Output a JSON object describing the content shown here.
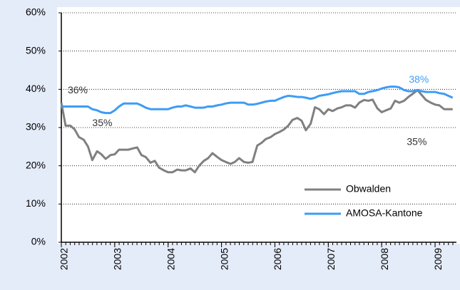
{
  "chart_data": {
    "type": "line",
    "x": [
      2002,
      2002.08,
      2002.17,
      2002.25,
      2002.33,
      2002.42,
      2002.5,
      2002.58,
      2002.67,
      2002.75,
      2002.83,
      2002.92,
      2003,
      2003.08,
      2003.17,
      2003.25,
      2003.33,
      2003.42,
      2003.5,
      2003.58,
      2003.67,
      2003.75,
      2003.83,
      2003.92,
      2004,
      2004.08,
      2004.17,
      2004.25,
      2004.33,
      2004.42,
      2004.5,
      2004.58,
      2004.67,
      2004.75,
      2004.83,
      2004.92,
      2005,
      2005.08,
      2005.17,
      2005.25,
      2005.33,
      2005.42,
      2005.5,
      2005.58,
      2005.67,
      2005.75,
      2005.83,
      2005.92,
      2006,
      2006.08,
      2006.17,
      2006.25,
      2006.33,
      2006.42,
      2006.5,
      2006.58,
      2006.67,
      2006.75,
      2006.83,
      2006.92,
      2007,
      2007.08,
      2007.17,
      2007.25,
      2007.33,
      2007.42,
      2007.5,
      2007.58,
      2007.67,
      2007.75,
      2007.83,
      2007.92,
      2008,
      2008.08,
      2008.17,
      2008.25,
      2008.33,
      2008.42,
      2008.5,
      2008.58,
      2008.67,
      2008.75,
      2008.83,
      2008.92,
      2009,
      2009.08,
      2009.17,
      2009.25,
      2009.33
    ],
    "series": [
      {
        "name": "Obwalden",
        "color": "#808080",
        "values": [
          36.5,
          30.5,
          30.5,
          29.5,
          27.5,
          26.8,
          25,
          21.5,
          23.8,
          23,
          21.8,
          22.8,
          23,
          24.2,
          24.2,
          24.2,
          24.5,
          24.8,
          22.8,
          22.3,
          20.8,
          21.3,
          19.5,
          18.8,
          18.3,
          18.3,
          19,
          18.8,
          18.8,
          19.3,
          18.3,
          20,
          21.3,
          22,
          23.3,
          22.3,
          21.5,
          21,
          20.5,
          21,
          22,
          21,
          20.8,
          21,
          25.3,
          26,
          27,
          27.5,
          28.3,
          28.8,
          29.5,
          30.5,
          32,
          32.5,
          31.8,
          29.3,
          31,
          35.3,
          34.8,
          33.5,
          34.8,
          34.3,
          35,
          35.3,
          35.8,
          35.8,
          35.2,
          36.5,
          37.2,
          37,
          37.3,
          35,
          34,
          34.5,
          35,
          37,
          36.5,
          37,
          38,
          38.8,
          39.8,
          38.5,
          37.2,
          36.5,
          36,
          35.8,
          34.8,
          34.8,
          34.8
        ]
      },
      {
        "name": "AMOSA-Kantone",
        "color": "#3d9cf5",
        "values": [
          35.5,
          35.5,
          35.5,
          35.5,
          35.5,
          35.5,
          35.5,
          34.8,
          34.5,
          34,
          33.8,
          33.8,
          34.5,
          35.5,
          36.3,
          36.3,
          36.3,
          36.3,
          35.8,
          35.2,
          34.8,
          34.8,
          34.8,
          34.8,
          34.8,
          35.2,
          35.5,
          35.5,
          35.8,
          35.5,
          35.2,
          35.2,
          35.2,
          35.5,
          35.5,
          35.8,
          36,
          36.3,
          36.5,
          36.5,
          36.5,
          36.5,
          36,
          36,
          36.2,
          36.5,
          36.8,
          37,
          37,
          37.5,
          38,
          38.3,
          38.2,
          38,
          38,
          37.8,
          37.5,
          37.8,
          38.3,
          38.5,
          38.7,
          39,
          39.3,
          39.5,
          39.5,
          39.5,
          39.5,
          38.8,
          38.8,
          39.3,
          39.5,
          39.8,
          40.2,
          40.5,
          40.7,
          40.7,
          40.5,
          39.8,
          39.5,
          39.5,
          39.8,
          39.5,
          39.3,
          39.3,
          39.3,
          39,
          38.8,
          38.3,
          37.8
        ]
      }
    ],
    "xlim": [
      2002,
      2009.4
    ],
    "xticks": [
      2002,
      2003,
      2004,
      2005,
      2006,
      2007,
      2008,
      2009
    ],
    "ylim": [
      0,
      60
    ],
    "yticks": [
      {
        "value": 0,
        "label": "0%"
      },
      {
        "value": 10,
        "label": "10%"
      },
      {
        "value": 20,
        "label": "20%"
      },
      {
        "value": 30,
        "label": "30%"
      },
      {
        "value": 40,
        "label": "40%"
      },
      {
        "value": 50,
        "label": "50%"
      },
      {
        "value": 60,
        "label": "60%"
      }
    ],
    "grid": true,
    "legend": "lower right",
    "annotations": [
      {
        "text": "36%",
        "x": 2002.12,
        "y": 39.6,
        "color": "#333333"
      },
      {
        "text": "35%",
        "x": 2002.58,
        "y": 31.1,
        "color": "#333333"
      },
      {
        "text": "38%",
        "x": 2008.51,
        "y": 42.4,
        "color": "#3d9cf5"
      },
      {
        "text": "35%",
        "x": 2008.47,
        "y": 26.1,
        "color": "#333333"
      }
    ]
  }
}
